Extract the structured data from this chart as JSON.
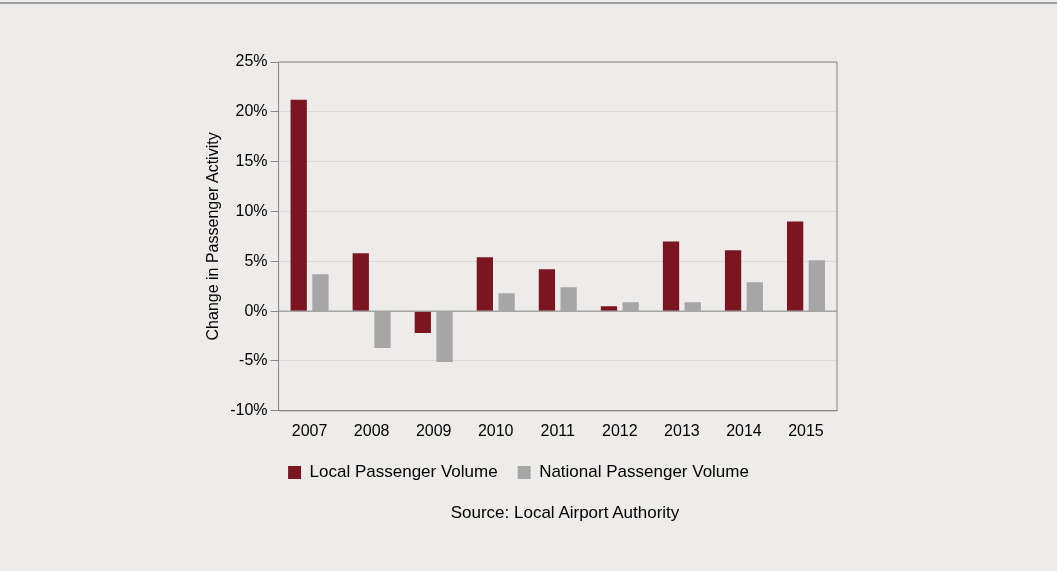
{
  "chart_data": {
    "type": "bar",
    "ylabel": "Change in Passenger Activity",
    "categories": [
      "2007",
      "2008",
      "2009",
      "2010",
      "2011",
      "2012",
      "2013",
      "2014",
      "2015"
    ],
    "series": [
      {
        "name": "Local Passenger Volume",
        "color": "#7b1520",
        "values": [
          21.2,
          5.8,
          -2.2,
          5.4,
          4.2,
          0.5,
          7.0,
          6.1,
          9.0
        ]
      },
      {
        "name": "National Passenger Volume",
        "color": "#a6a6a6",
        "values": [
          3.7,
          -3.7,
          -5.1,
          1.8,
          2.4,
          0.9,
          0.9,
          2.9,
          5.1
        ]
      }
    ],
    "ylim": [
      -10,
      25
    ],
    "yticks": [
      {
        "value": -10,
        "label": "-10%"
      },
      {
        "value": -5,
        "label": "-5%"
      },
      {
        "value": 0,
        "label": "0%"
      },
      {
        "value": 5,
        "label": "5%"
      },
      {
        "value": 10,
        "label": "10%"
      },
      {
        "value": 15,
        "label": "15%"
      },
      {
        "value": 20,
        "label": "20%"
      },
      {
        "value": 25,
        "label": "25%"
      }
    ],
    "grid": "y",
    "legend": "bottom",
    "annotations": [
      "Source: Local Airport Authority"
    ]
  }
}
